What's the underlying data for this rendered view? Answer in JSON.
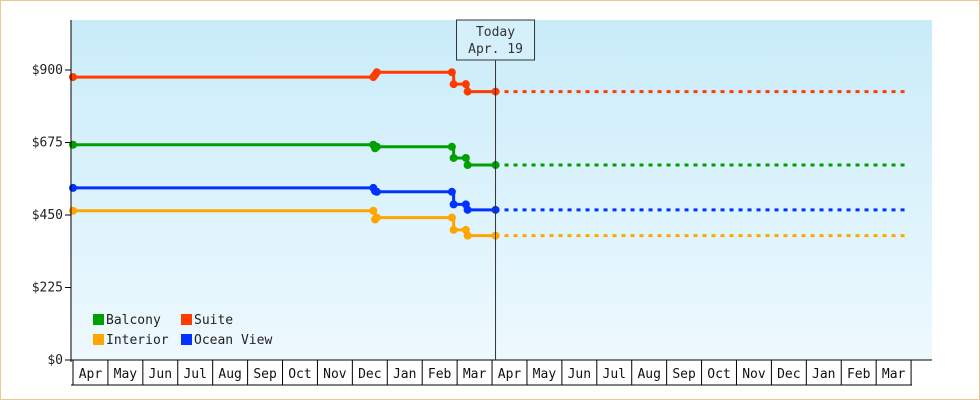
{
  "chart_data": {
    "type": "line",
    "title": "",
    "xlabel": "",
    "ylabel": "",
    "ylim": [
      0,
      1000
    ],
    "y_ticks": [
      {
        "value": 0,
        "label": "$0"
      },
      {
        "value": 225,
        "label": "$225"
      },
      {
        "value": 450,
        "label": "$450"
      },
      {
        "value": 675,
        "label": "$675"
      },
      {
        "value": 900,
        "label": "$900"
      }
    ],
    "x_month_labels": [
      "Apr",
      "May",
      "Jun",
      "Jul",
      "Aug",
      "Sep",
      "Oct",
      "Nov",
      "Dec",
      "Jan",
      "Feb",
      "Mar",
      "Apr",
      "May",
      "Jun",
      "Jul",
      "Aug",
      "Sep",
      "Oct",
      "Nov",
      "Dec",
      "Jan",
      "Feb",
      "Mar"
    ],
    "today_marker": {
      "line1": "Today",
      "line2": "Apr. 19",
      "x_month": 12.1
    },
    "background_gradient": [
      "#c9ecf9",
      "#eef9fe"
    ],
    "legend_placement": "bottom-left",
    "series": [
      {
        "name": "Suite",
        "color": "#ff3b00",
        "points": [
          [
            0,
            878
          ],
          [
            8.6,
            878
          ],
          [
            8.65,
            885
          ],
          [
            8.7,
            893
          ],
          [
            10.85,
            893
          ],
          [
            10.9,
            856
          ],
          [
            11.25,
            856
          ],
          [
            11.3,
            833
          ],
          [
            12.1,
            833
          ]
        ],
        "projection": [
          12.1,
          833,
          24,
          833
        ]
      },
      {
        "name": "Balcony",
        "color": "#00a000",
        "points": [
          [
            0,
            668
          ],
          [
            8.6,
            668
          ],
          [
            8.65,
            657
          ],
          [
            8.7,
            662
          ],
          [
            10.85,
            662
          ],
          [
            10.9,
            627
          ],
          [
            11.25,
            627
          ],
          [
            11.3,
            605
          ],
          [
            12.1,
            605
          ]
        ],
        "projection": [
          12.1,
          605,
          24,
          605
        ]
      },
      {
        "name": "Ocean View",
        "color": "#0033ff",
        "points": [
          [
            0,
            534
          ],
          [
            8.6,
            534
          ],
          [
            8.65,
            524
          ],
          [
            8.7,
            522
          ],
          [
            10.85,
            522
          ],
          [
            10.9,
            483
          ],
          [
            11.25,
            483
          ],
          [
            11.3,
            466
          ],
          [
            12.1,
            466
          ]
        ],
        "projection": [
          12.1,
          466,
          24,
          466
        ]
      },
      {
        "name": "Interior",
        "color": "#ffa500",
        "points": [
          [
            0,
            463
          ],
          [
            8.6,
            463
          ],
          [
            8.65,
            436
          ],
          [
            8.7,
            442
          ],
          [
            10.85,
            442
          ],
          [
            10.9,
            404
          ],
          [
            11.25,
            404
          ],
          [
            11.3,
            386
          ],
          [
            12.1,
            386
          ]
        ],
        "projection": [
          12.1,
          386,
          24,
          386
        ]
      }
    ],
    "legend": [
      {
        "label": "Balcony",
        "color": "#00a000"
      },
      {
        "label": "Suite",
        "color": "#ff3b00"
      },
      {
        "label": "Interior",
        "color": "#ffa500"
      },
      {
        "label": "Ocean View",
        "color": "#0033ff"
      }
    ]
  }
}
